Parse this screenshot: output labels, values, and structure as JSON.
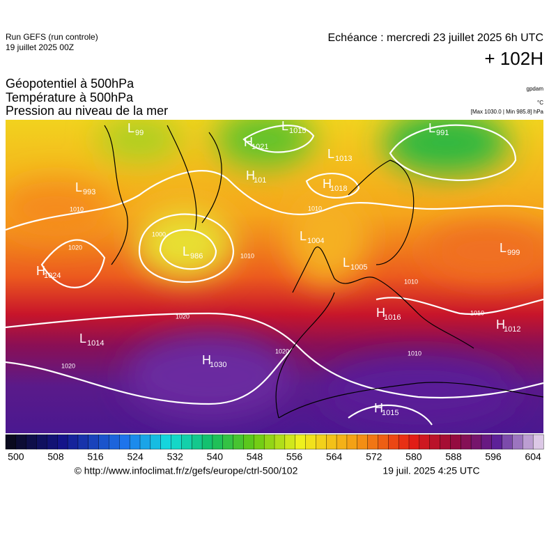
{
  "header": {
    "run": "Run GEFS (run controle)",
    "run_date": "19 juillet 2025 00Z",
    "forecast_time": "Echéance : mercredi 23 juillet 2025 6h UTC",
    "lead": "+ 102H"
  },
  "legend": {
    "lines": [
      "Géopotentiel à 500hPa",
      "Température à 500hPa",
      "Pression au niveau de la mer"
    ],
    "unit_geopotential": "gpdam",
    "unit_temperature": "°C",
    "pressure_range": "[Max 1030.0 | Min 985.8] hPa"
  },
  "centers": [
    {
      "letter": "L",
      "value": "99"
    },
    {
      "letter": "H",
      "value": "1021"
    },
    {
      "letter": "L",
      "value": "1015"
    },
    {
      "letter": "L",
      "value": "991"
    },
    {
      "letter": "L",
      "value": "1013"
    },
    {
      "letter": "H",
      "value": "101"
    },
    {
      "letter": "H",
      "value": "1018"
    },
    {
      "letter": "L",
      "value": "993"
    },
    {
      "letter": "L",
      "value": "986"
    },
    {
      "letter": "L",
      "value": "1004"
    },
    {
      "letter": "L",
      "value": "1005"
    },
    {
      "letter": "L",
      "value": "999"
    },
    {
      "letter": "H",
      "value": "1024"
    },
    {
      "letter": "H",
      "value": "1016"
    },
    {
      "letter": "H",
      "value": "1012"
    },
    {
      "letter": "L",
      "value": "1014"
    },
    {
      "letter": "H",
      "value": "1030"
    },
    {
      "letter": "H",
      "value": "1015"
    }
  ],
  "isobar_labels": [
    "1010",
    "1000",
    "1020",
    "1010",
    "1020",
    "1020",
    "1020",
    "1010",
    "1010",
    "1010",
    "1010"
  ],
  "colorbar": {
    "labels": [
      "500",
      "508",
      "516",
      "524",
      "532",
      "540",
      "548",
      "556",
      "564",
      "572",
      "580",
      "588",
      "596",
      "604"
    ]
  },
  "footer": {
    "source": "© http://www.infoclimat.fr/z/gefs/europe/ctrl-500/102",
    "generated": "19 juil. 2025  4:25 UTC"
  }
}
